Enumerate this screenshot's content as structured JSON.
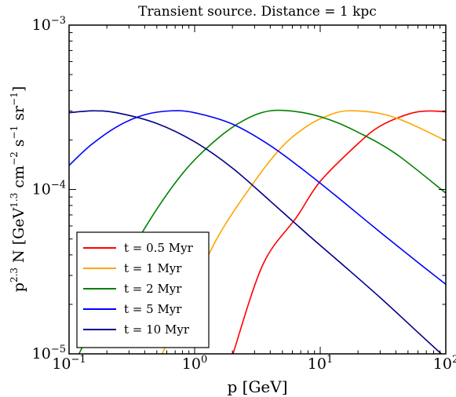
{
  "chart_data": {
    "type": "line",
    "title": "Transient source. Distance = 1 kpc",
    "xlabel": "p [GeV]",
    "ylabel": {
      "base": "p",
      "exp1": "2.3",
      "mid1": " N [GeV",
      "exp2": "1.3",
      "mid2": " cm",
      "exp3": "−2",
      "mid3": " s",
      "exp4": "−1",
      "mid4": " sr",
      "exp5": "−1",
      "end": "]"
    },
    "x_scale": "log",
    "y_scale": "log",
    "xlim": [
      0.1,
      100
    ],
    "ylim": [
      1e-05,
      0.001
    ],
    "x_ticks": [
      {
        "value": 0.1,
        "base": "10",
        "exp": "−1"
      },
      {
        "value": 1,
        "base": "10",
        "exp": "0"
      },
      {
        "value": 10,
        "base": "10",
        "exp": "1"
      },
      {
        "value": 100,
        "base": "10",
        "exp": "2"
      }
    ],
    "y_ticks": [
      {
        "value": 1e-05,
        "base": "10",
        "exp": "−5"
      },
      {
        "value": 0.0001,
        "base": "10",
        "exp": "−4"
      },
      {
        "value": 0.001,
        "base": "10",
        "exp": "−3"
      }
    ],
    "grid": false,
    "legend_position": "bottom-left",
    "series": [
      {
        "name": "t = 0.5 Myr",
        "color": "#ff0000",
        "points": [
          [
            2.02,
            1e-05
          ],
          [
            3.5,
            3.5e-05
          ],
          [
            6.5,
            6.8e-05
          ],
          [
            10,
            0.000112
          ],
          [
            20,
            0.00019
          ],
          [
            30,
            0.000243
          ],
          [
            50,
            0.000287
          ],
          [
            70,
            0.0003
          ],
          [
            100,
            0.000297
          ]
        ]
      },
      {
        "name": "t = 1 Myr",
        "color": "#ffa500",
        "points": [
          [
            0.55,
            1e-05
          ],
          [
            0.8,
            1.8e-05
          ],
          [
            1.5,
            5e-05
          ],
          [
            3,
            0.000112
          ],
          [
            5,
            0.000183
          ],
          [
            8,
            0.000245
          ],
          [
            12,
            0.000285
          ],
          [
            17,
            0.000301
          ],
          [
            30,
            0.00029
          ],
          [
            50,
            0.000255
          ],
          [
            100,
            0.000198
          ]
        ]
      },
      {
        "name": "t = 2 Myr",
        "color": "#008000",
        "points": [
          [
            0.12,
            1e-05
          ],
          [
            0.2,
            2.2e-05
          ],
          [
            0.4,
            5.8e-05
          ],
          [
            0.8,
            0.000125
          ],
          [
            1.5,
            0.000202
          ],
          [
            2.5,
            0.000265
          ],
          [
            4,
            0.000301
          ],
          [
            7,
            0.000295
          ],
          [
            12,
            0.000265
          ],
          [
            20,
            0.000223
          ],
          [
            40,
            0.000165
          ],
          [
            100,
            9.5e-05
          ]
        ]
      },
      {
        "name": "t = 5 Myr",
        "color": "#0000ff",
        "points": [
          [
            0.1,
            0.00014
          ],
          [
            0.15,
            0.000187
          ],
          [
            0.25,
            0.000245
          ],
          [
            0.4,
            0.000285
          ],
          [
            0.65,
            0.000301
          ],
          [
            1,
            0.000293
          ],
          [
            2,
            0.00025
          ],
          [
            4,
            0.000185
          ],
          [
            8,
            0.000125
          ],
          [
            15,
            8.5e-05
          ],
          [
            30,
            5.5e-05
          ],
          [
            60,
            3.6e-05
          ],
          [
            100,
            2.65e-05
          ]
        ]
      },
      {
        "name": "t = 10 Myr",
        "color": "#00008b",
        "points": [
          [
            0.1,
            0.000293
          ],
          [
            0.16,
            0.000301
          ],
          [
            0.25,
            0.000291
          ],
          [
            0.5,
            0.000252
          ],
          [
            1,
            0.000195
          ],
          [
            2,
            0.000135
          ],
          [
            4,
            8.5e-05
          ],
          [
            8,
            5.3e-05
          ],
          [
            15,
            3.5e-05
          ],
          [
            30,
            2.2e-05
          ],
          [
            60,
            1.35e-05
          ],
          [
            92,
            1e-05
          ]
        ]
      }
    ]
  }
}
